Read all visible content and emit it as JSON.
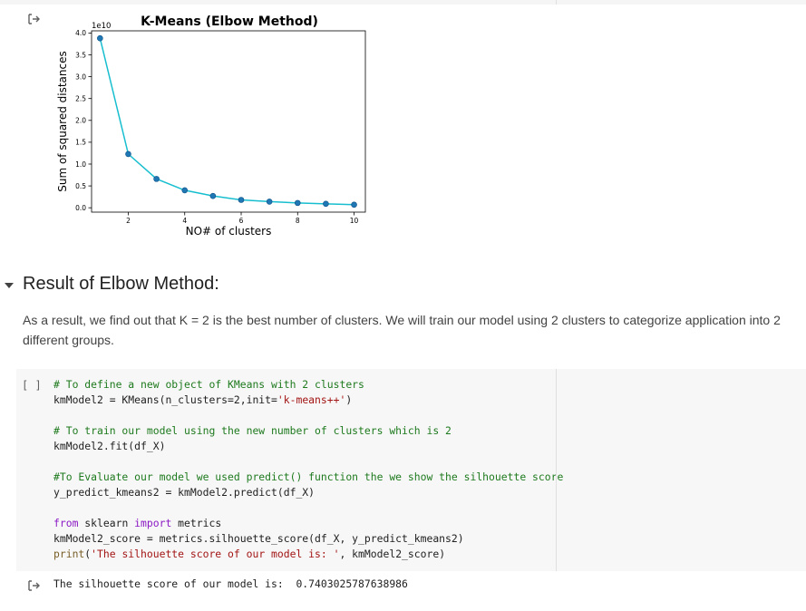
{
  "output_icon": "output-arrow-icon",
  "chart_data": {
    "type": "line",
    "title": "K-Means (Elbow Method)",
    "xlabel": "NO# of clusters",
    "ylabel": "Sum of squared distances",
    "y_exponent_label": "1e10",
    "x": [
      1,
      2,
      3,
      4,
      5,
      6,
      7,
      8,
      9,
      10
    ],
    "series": [
      {
        "values": [
          38800000000.0,
          12300000000.0,
          6600000000.0,
          4000000000.0,
          2700000000.0,
          1800000000.0,
          1400000000.0,
          1100000000.0,
          900000000.0,
          700000000.0
        ]
      }
    ],
    "xlim": [
      0.7,
      10.4
    ],
    "ylim": [
      -1000000000.0,
      40500000000.0
    ],
    "x_ticks": [
      "2",
      "4",
      "6",
      "8",
      "10"
    ],
    "x_tick_values": [
      2,
      4,
      6,
      8,
      10
    ],
    "y_ticks": [
      "0.0",
      "0.5",
      "1.0",
      "1.5",
      "2.0",
      "2.5",
      "3.0",
      "3.5",
      "4.0"
    ],
    "y_tick_values": [
      0,
      5000000000.0,
      10000000000.0,
      15000000000.0,
      20000000000.0,
      25000000000.0,
      30000000000.0,
      35000000000.0,
      40000000000.0
    ],
    "grid": false,
    "colors": {
      "line": "#17becf",
      "marker": "#1f77b4"
    }
  },
  "section": {
    "title": "Result of Elbow Method:",
    "text": "As a result, we find out that K = 2 is the best number of clusters. We will train our model using 2 clusters to categorize application into 2 different groups."
  },
  "code_cell": {
    "run_label": "[ ]",
    "lines": [
      [
        {
          "t": "# To define a new object of KMeans with 2 clusters",
          "c": "comment"
        }
      ],
      [
        {
          "t": "kmModel2 = KMeans(n_clusters=2,init=",
          "c": ""
        },
        {
          "t": "'k-means++'",
          "c": "string"
        },
        {
          "t": ")",
          "c": ""
        }
      ],
      [],
      [
        {
          "t": "# To train our model using the new number of clusters which is 2",
          "c": "comment"
        }
      ],
      [
        {
          "t": "kmModel2.fit(df_X)",
          "c": ""
        }
      ],
      [],
      [
        {
          "t": "#To Evaluate our model we used predict() function the we show the silhouette score",
          "c": "comment"
        }
      ],
      [
        {
          "t": "y_predict_kmeans2 = kmModel2.predict(df_X)",
          "c": ""
        }
      ],
      [],
      [
        {
          "t": "from",
          "c": "keyword"
        },
        {
          "t": " sklearn ",
          "c": ""
        },
        {
          "t": "import",
          "c": "keyword"
        },
        {
          "t": " metrics",
          "c": ""
        }
      ],
      [
        {
          "t": "kmModel2_score = metrics.silhouette_score(df_X, y_predict_kmeans2)",
          "c": ""
        }
      ],
      [
        {
          "t": "print",
          "c": "builtin"
        },
        {
          "t": "(",
          "c": ""
        },
        {
          "t": "'The silhouette score of our model is: '",
          "c": "string"
        },
        {
          "t": ", kmModel2_score)",
          "c": ""
        }
      ]
    ]
  },
  "output": {
    "text": "The silhouette score of our model is:  0.7403025787638986"
  }
}
